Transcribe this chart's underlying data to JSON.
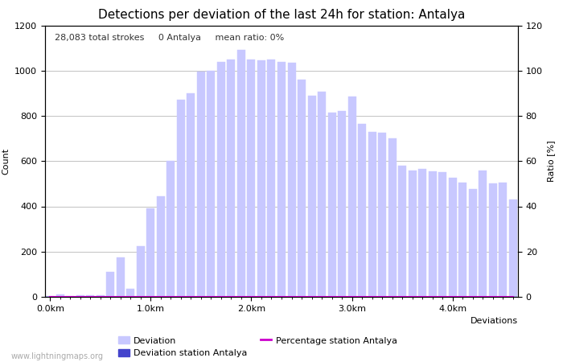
{
  "title": "Detections per deviation of the last 24h for station: Antalya",
  "xlabel": "Deviations",
  "ylabel_left": "Count",
  "ylabel_right": "Ratio [%]",
  "annotation": "28,083 total strokes     0 Antalya     mean ratio: 0%",
  "watermark": "www.lightningmaps.org",
  "x_tick_labels": [
    "0.0km",
    "1.0km",
    "2.0km",
    "3.0km",
    "4.0km"
  ],
  "x_tick_positions": [
    0,
    10,
    20,
    30,
    40
  ],
  "ylim_left": [
    0,
    1200
  ],
  "ylim_right": [
    0,
    120
  ],
  "yticks_left": [
    0,
    200,
    400,
    600,
    800,
    1000,
    1200
  ],
  "yticks_right": [
    0,
    20,
    40,
    60,
    80,
    100,
    120
  ],
  "bar_color": "#c8c8ff",
  "bar_station_color": "#4444cc",
  "line_color": "#cc00cc",
  "bar_values": [
    5,
    10,
    5,
    8,
    8,
    8,
    110,
    175,
    35,
    225,
    390,
    445,
    600,
    870,
    900,
    995,
    1000,
    1040,
    1050,
    1090,
    1050,
    1045,
    1050,
    1040,
    1035,
    960,
    890,
    905,
    815,
    820,
    885,
    765,
    730,
    725,
    700,
    580,
    560,
    565,
    555,
    550,
    525,
    505,
    475,
    560,
    500,
    505,
    430
  ],
  "station_values": [
    0,
    0,
    0,
    0,
    0,
    0,
    0,
    0,
    0,
    0,
    0,
    0,
    0,
    0,
    0,
    0,
    0,
    0,
    0,
    0,
    0,
    0,
    0,
    0,
    0,
    0,
    0,
    0,
    0,
    0,
    0,
    0,
    0,
    0,
    0,
    0,
    0,
    0,
    0,
    0,
    0,
    0,
    0,
    0,
    0,
    0,
    0
  ],
  "percentage_values": [
    0,
    0,
    0,
    0,
    0,
    0,
    0,
    0,
    0,
    0,
    0,
    0,
    0,
    0,
    0,
    0,
    0,
    0,
    0,
    0,
    0,
    0,
    0,
    0,
    0,
    0,
    0,
    0,
    0,
    0,
    0,
    0,
    0,
    0,
    0,
    0,
    0,
    0,
    0,
    0,
    0,
    0,
    0,
    0,
    0,
    0,
    0
  ],
  "legend_deviation_label": "Deviation",
  "legend_station_label": "Deviation station Antalya",
  "legend_percentage_label": "Percentage station Antalya",
  "bg_color": "#ffffff",
  "grid_color": "#aaaaaa",
  "title_fontsize": 11,
  "label_fontsize": 8,
  "tick_fontsize": 8,
  "annotation_fontsize": 8
}
